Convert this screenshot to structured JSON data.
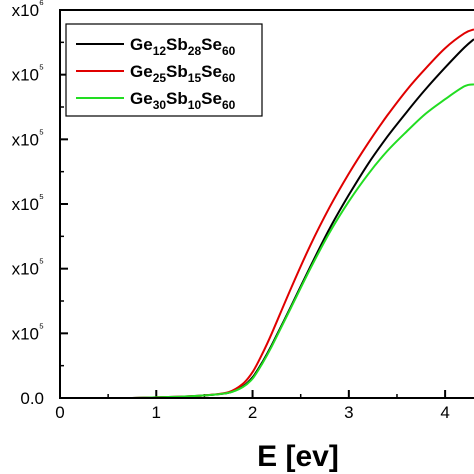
{
  "chart_data": {
    "type": "line",
    "xlabel": "E [ev]",
    "ylabel": "",
    "xlim": [
      0,
      4.3
    ],
    "ylim": [
      0,
      6000000
    ],
    "x_ticks": [
      0,
      1,
      2,
      3,
      4
    ],
    "x_tick_labels": [
      "0",
      "1",
      "2",
      "3",
      "4"
    ],
    "y_ticks": [
      0,
      1000000,
      2000000,
      3000000,
      4000000,
      5000000,
      6000000
    ],
    "y_tick_labels": [
      "0.0",
      "x10⁵",
      "x10⁵",
      "x10⁵",
      "x10⁵",
      "x10⁵",
      "x10⁶"
    ],
    "grid": false,
    "legend_position": "top-left",
    "series": [
      {
        "name": "Ge12Sb28Se60",
        "legend": [
          {
            "t": "Ge"
          },
          {
            "t": "12",
            "sub": true
          },
          {
            "t": "Sb"
          },
          {
            "t": "28",
            "sub": true
          },
          {
            "t": "Se"
          },
          {
            "t": "60",
            "sub": true
          }
        ],
        "color": "#000000",
        "x": [
          0.75,
          1.0,
          1.25,
          1.5,
          1.75,
          1.9,
          2.0,
          2.1,
          2.2,
          2.4,
          2.6,
          2.8,
          3.0,
          3.2,
          3.4,
          3.6,
          3.8,
          4.0,
          4.2,
          4.3
        ],
        "y": [
          0,
          10000,
          20000,
          40000,
          80000,
          180000,
          320000,
          550000,
          820000,
          1420000,
          2030000,
          2620000,
          3140000,
          3620000,
          4040000,
          4420000,
          4780000,
          5110000,
          5420000,
          5550000
        ]
      },
      {
        "name": "Ge25Sb15Se60",
        "legend": [
          {
            "t": "Ge"
          },
          {
            "t": "25",
            "sub": true
          },
          {
            "t": "Sb"
          },
          {
            "t": "15",
            "sub": true
          },
          {
            "t": "Se"
          },
          {
            "t": "60",
            "sub": true
          }
        ],
        "color": "#e00000",
        "x": [
          0.75,
          1.0,
          1.25,
          1.5,
          1.75,
          1.9,
          2.0,
          2.1,
          2.2,
          2.4,
          2.6,
          2.8,
          3.0,
          3.2,
          3.4,
          3.6,
          3.8,
          4.0,
          4.2,
          4.3
        ],
        "y": [
          0,
          10000,
          20000,
          40000,
          90000,
          220000,
          400000,
          680000,
          1000000,
          1700000,
          2360000,
          2950000,
          3470000,
          3940000,
          4370000,
          4760000,
          5100000,
          5410000,
          5640000,
          5700000
        ]
      },
      {
        "name": "Ge30Sb10Se60",
        "legend": [
          {
            "t": "Ge"
          },
          {
            "t": "30",
            "sub": true
          },
          {
            "t": "Sb"
          },
          {
            "t": "10",
            "sub": true
          },
          {
            "t": "Se"
          },
          {
            "t": "60",
            "sub": true
          }
        ],
        "color": "#22dd22",
        "x": [
          0.75,
          1.0,
          1.25,
          1.5,
          1.75,
          1.9,
          2.0,
          2.1,
          2.2,
          2.4,
          2.6,
          2.8,
          3.0,
          3.2,
          3.4,
          3.6,
          3.8,
          4.0,
          4.2,
          4.3
        ],
        "y": [
          0,
          10000,
          20000,
          40000,
          80000,
          170000,
          300000,
          530000,
          800000,
          1400000,
          2000000,
          2560000,
          3040000,
          3460000,
          3820000,
          4120000,
          4400000,
          4620000,
          4820000,
          4850000
        ]
      }
    ]
  }
}
